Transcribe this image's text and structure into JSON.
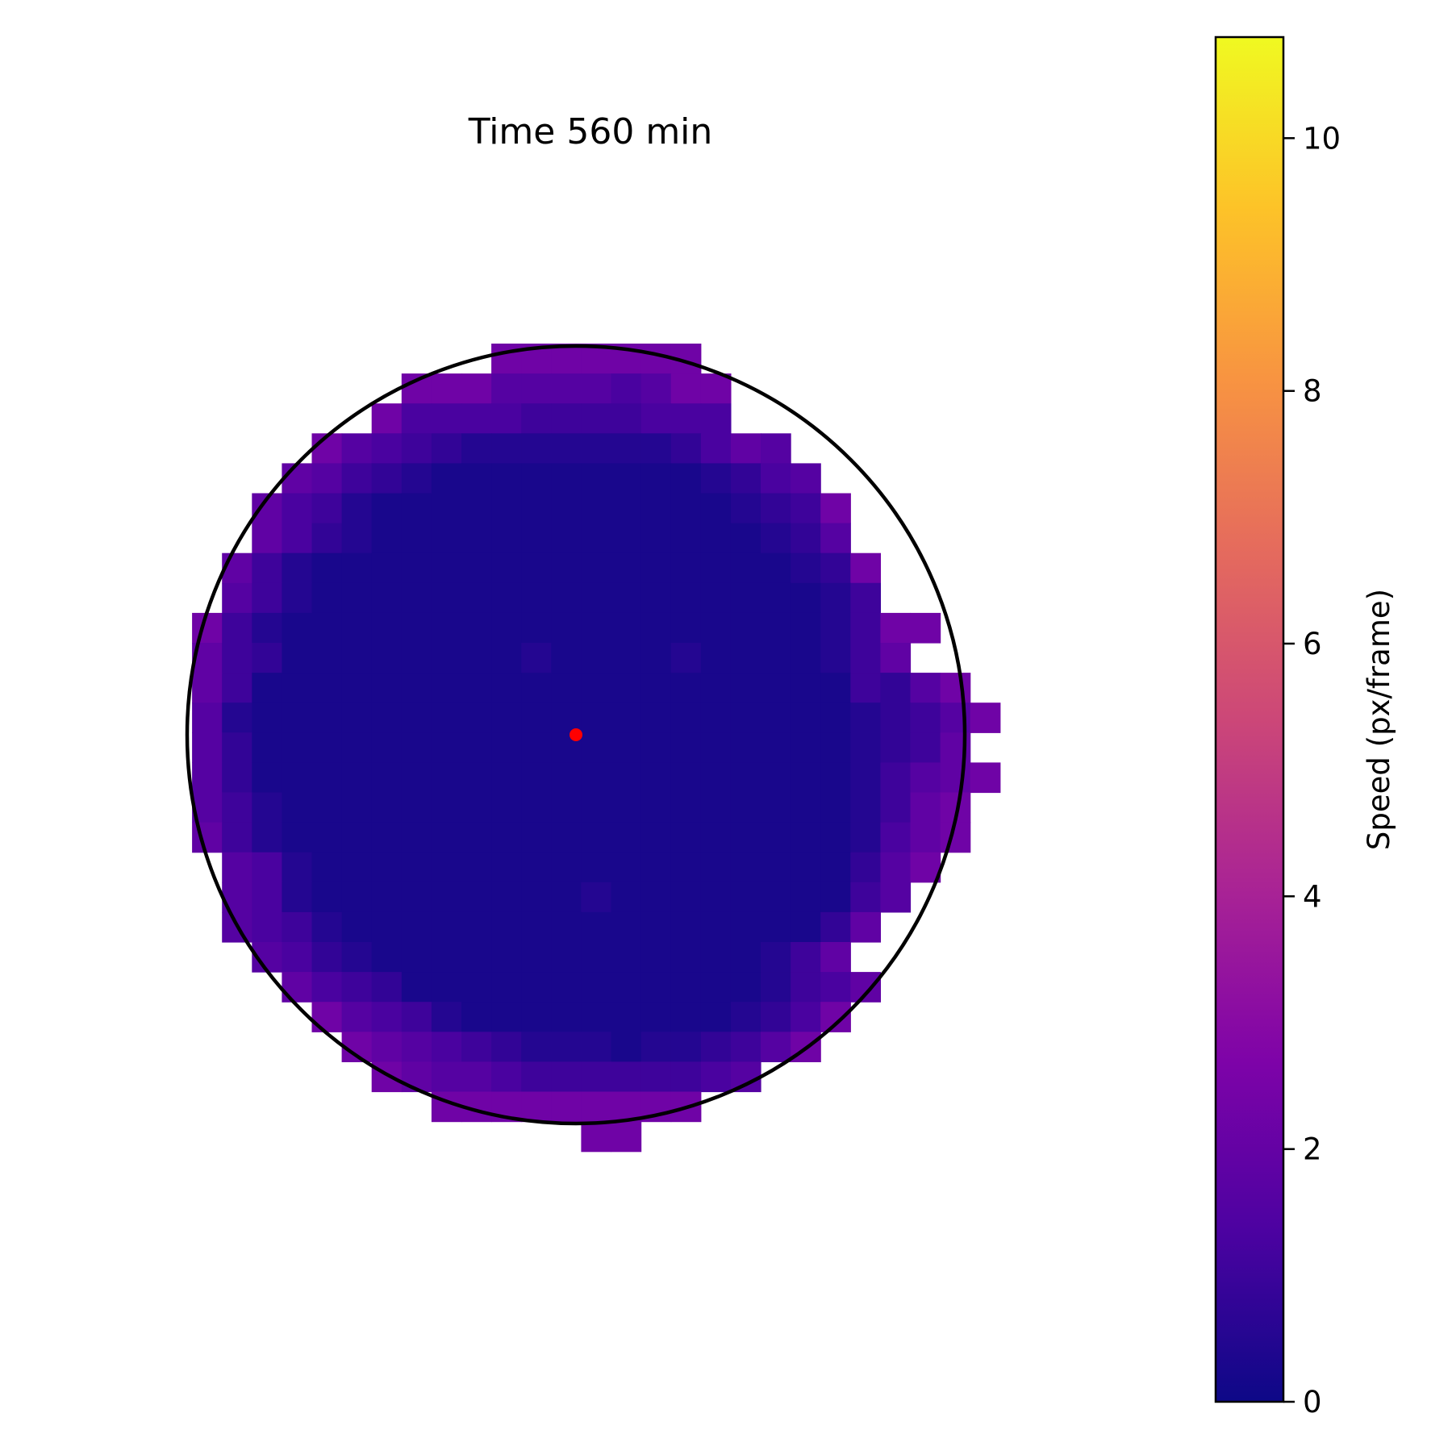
{
  "chart_data": {
    "type": "heatmap",
    "title": "Time 560 min",
    "colormap": "plasma",
    "colorbar": {
      "label": "Speed (px/frame)",
      "range": [
        0,
        10.8
      ],
      "ticks": [
        0,
        2,
        4,
        6,
        8,
        10
      ],
      "tick_labels": [
        "0",
        "2",
        "4",
        "6",
        "8",
        "10"
      ],
      "position": "right"
    },
    "axes_visible": false,
    "grid": false,
    "center_marker": {
      "color": "#ff0000"
    },
    "circle_outline": {
      "color": "#000000"
    },
    "speed_grid": [
      "...........8888888...........",
      "........88866665688..........",
      ".......855554444555..........",
      ".....8654322222223576........",
      "....764321111111112356.......",
      "...75421111111111112348......",
      "...75321111111111111236......",
      "..7421111111111111111238.....",
      "..6421111111111111111124.....",
      ".8421111111111111111112488...",
      ".743111111112111121111247....",
      ".74111111111111111111114368..",
      ".621111111111111111111123468.",
      ".63111111111111111111112347..",
      ".631111111111111111111124678.",
      ".64211111111111111111112478..",
      ".74211111111111111111112578..",
      "..652111111111111111111368...",
      "..65211111111121111111146....",
      "..6542111111111111111137.....",
      "...65321111111111111247......",
      "....75431111111111112457.....",
      ".....865421111111112358......",
      "......8765432221223468.......",
      ".......8766544444456.........",
      ".........888888888...........",
      "..............88............."
    ],
    "speed_levels": {
      "1": 0.25,
      "2": 0.5,
      "3": 0.8,
      "4": 1.05,
      "5": 1.3,
      "6": 1.6,
      "7": 1.9,
      "8": 2.3
    }
  }
}
